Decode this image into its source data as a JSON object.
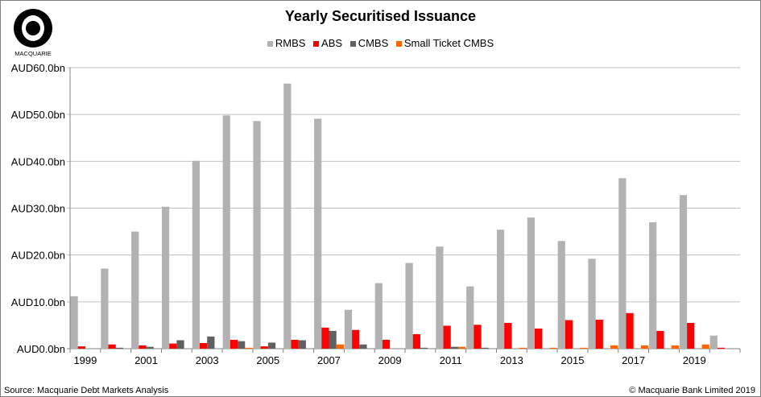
{
  "logo_text": "MACQUARIE",
  "footer": {
    "source": "Source: Macquarie Debt Markets Analysis",
    "copyright": "© Macquarie Bank Limited 2019"
  },
  "chart_data": {
    "type": "bar",
    "title": "Yearly Securitised Issuance",
    "xlabel": "",
    "ylabel": "",
    "ylim": [
      0,
      60
    ],
    "yticks": [
      0,
      10,
      20,
      30,
      40,
      50,
      60
    ],
    "ytick_labels": [
      "AUD0.0bn",
      "AUD10.0bn",
      "AUD20.0bn",
      "AUD30.0bn",
      "AUD40.0bn",
      "AUD50.0bn",
      "AUD60.0bn"
    ],
    "grid": true,
    "legend_position": "top-center",
    "categories": [
      "1999",
      "2000",
      "2001",
      "2002",
      "2003",
      "2004",
      "2005",
      "2006",
      "2007",
      "2008",
      "2009",
      "2010",
      "2011",
      "2012",
      "2013",
      "2014",
      "2015",
      "2016",
      "2017",
      "2018",
      "2019",
      "2020"
    ],
    "xtick_labels_shown": [
      "1999",
      "2001",
      "2003",
      "2005",
      "2007",
      "2009",
      "2011",
      "2013",
      "2015",
      "2017",
      "2019"
    ],
    "series": [
      {
        "name": "RMBS",
        "color": "#b2b2b2",
        "values": [
          11.2,
          17.1,
          25.0,
          30.3,
          40.1,
          49.8,
          48.6,
          56.6,
          49.1,
          8.3,
          14.0,
          18.3,
          21.8,
          13.3,
          25.4,
          28.0,
          23.0,
          19.2,
          36.4,
          27.0,
          32.8,
          2.8
        ]
      },
      {
        "name": "ABS",
        "color": "#ff0000",
        "values": [
          0.5,
          0.9,
          0.7,
          1.1,
          1.2,
          1.9,
          0.5,
          1.9,
          4.5,
          4.0,
          1.9,
          3.1,
          4.9,
          5.1,
          5.5,
          4.3,
          6.1,
          6.2,
          7.6,
          3.8,
          5.5,
          0.2
        ]
      },
      {
        "name": "CMBS",
        "color": "#606060",
        "values": [
          0,
          0.2,
          0.4,
          1.8,
          2.6,
          1.6,
          1.3,
          1.8,
          3.8,
          0.9,
          0,
          0.2,
          0.4,
          0.2,
          0,
          0,
          0,
          0,
          0,
          0,
          0,
          0
        ]
      },
      {
        "name": "Small Ticket CMBS",
        "color": "#ff6600",
        "values": [
          0,
          0,
          0,
          0,
          0,
          0.2,
          0,
          0,
          0.9,
          0,
          0,
          0,
          0.4,
          0,
          0.2,
          0.2,
          0.2,
          0.7,
          0.7,
          0.7,
          0.9,
          0
        ]
      }
    ]
  }
}
